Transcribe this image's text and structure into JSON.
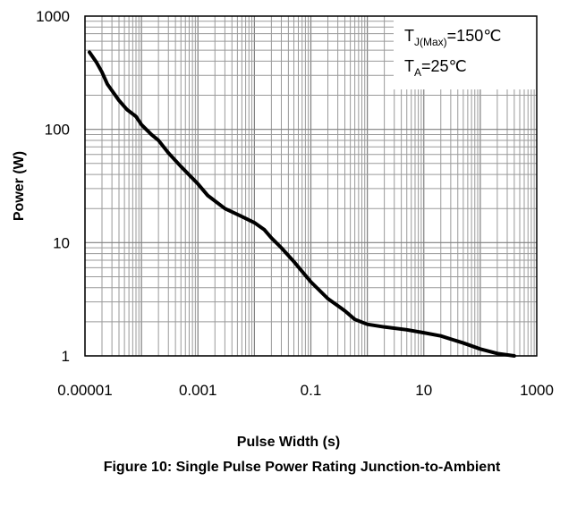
{
  "chart_data": {
    "type": "line",
    "title": "",
    "xlabel": "Pulse Width (s)",
    "ylabel": "Power (W)",
    "x_scale": "log",
    "y_scale": "log",
    "xlim": [
      1e-05,
      1000
    ],
    "ylim": [
      1,
      1000
    ],
    "grid": true,
    "x_ticks": [
      "0.00001",
      "0.001",
      "0.1",
      "10",
      "1000"
    ],
    "y_ticks": [
      "1",
      "10",
      "100",
      "1000"
    ],
    "annotations": {
      "tj_main": "T",
      "tj_sub": "J(Max)",
      "tj_value": "=150℃",
      "ta_main": "T",
      "ta_sub": "A",
      "ta_value": "=25℃"
    },
    "series": [
      {
        "values": [
          [
            1.2e-05,
            480
          ],
          [
            1.6e-05,
            390
          ],
          [
            2e-05,
            320
          ],
          [
            2.5e-05,
            250
          ],
          [
            4e-05,
            180
          ],
          [
            5.5e-05,
            150
          ],
          [
            8e-05,
            130
          ],
          [
            0.0001,
            110
          ],
          [
            0.00015,
            90
          ],
          [
            0.0002,
            80
          ],
          [
            0.0003,
            62
          ],
          [
            0.0005,
            47
          ],
          [
            0.001,
            33
          ],
          [
            0.0015,
            26
          ],
          [
            0.003,
            20
          ],
          [
            0.006,
            17
          ],
          [
            0.01,
            15
          ],
          [
            0.015,
            13
          ],
          [
            0.02,
            11
          ],
          [
            0.03,
            9
          ],
          [
            0.05,
            6.8
          ],
          [
            0.1,
            4.5
          ],
          [
            0.2,
            3.2
          ],
          [
            0.4,
            2.5
          ],
          [
            0.6,
            2.1
          ],
          [
            1,
            1.9
          ],
          [
            2,
            1.8
          ],
          [
            5,
            1.7
          ],
          [
            10,
            1.6
          ],
          [
            20,
            1.5
          ],
          [
            50,
            1.3
          ],
          [
            100,
            1.15
          ],
          [
            200,
            1.05
          ],
          [
            400,
            1.0
          ]
        ]
      }
    ]
  },
  "caption": "Figure 10: Single Pulse Power Rating Junction-to-Ambient"
}
